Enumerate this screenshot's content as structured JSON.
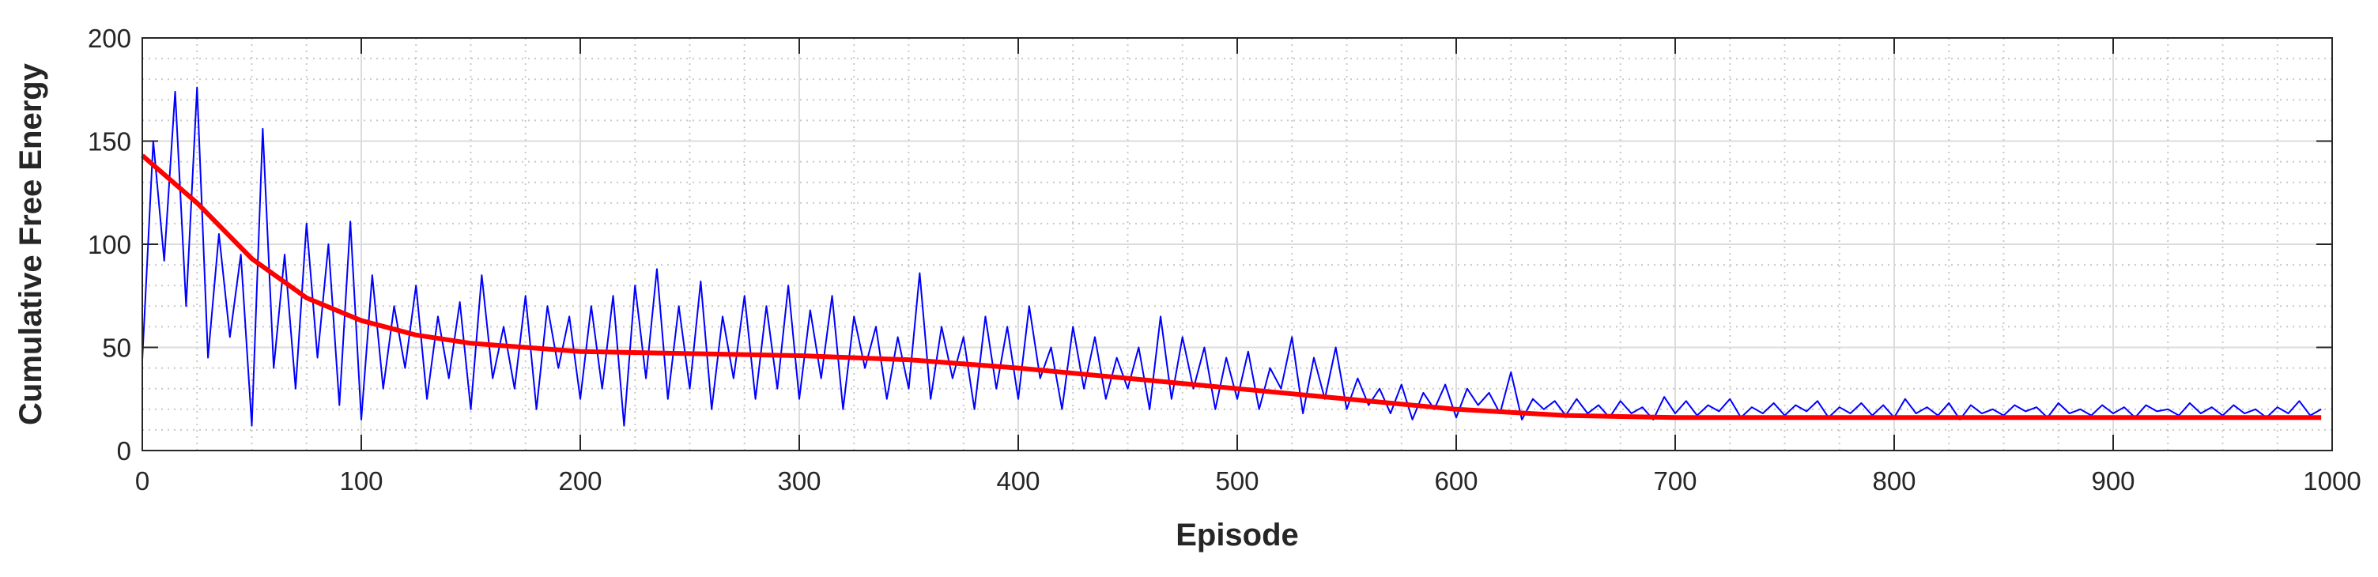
{
  "chart_data": {
    "type": "line",
    "xlabel": "Episode",
    "ylabel": "Cumulative Free Energy",
    "xlim": [
      0,
      1000
    ],
    "ylim": [
      0,
      200
    ],
    "xticks": [
      0,
      100,
      200,
      300,
      400,
      500,
      600,
      700,
      800,
      900,
      1000
    ],
    "yticks": [
      0,
      50,
      100,
      150,
      200
    ],
    "xminorticks": [
      0,
      25,
      50,
      75,
      100,
      125,
      150,
      175,
      200,
      225,
      250,
      275,
      300,
      325,
      350,
      375,
      400,
      425,
      450,
      475,
      500,
      525,
      550,
      575,
      600,
      625,
      650,
      675,
      700,
      725,
      750,
      775,
      800,
      825,
      850,
      875,
      900,
      925,
      950,
      975,
      1000
    ],
    "yminorticks": [
      0,
      10,
      20,
      30,
      40,
      50,
      60,
      70,
      80,
      90,
      100,
      110,
      120,
      130,
      140,
      150,
      160,
      170,
      180,
      190,
      200
    ],
    "grid": true,
    "minor_grid": true,
    "series": [
      {
        "color": "#0000ff",
        "x": [
          0,
          5,
          10,
          15,
          20,
          25,
          30,
          35,
          40,
          45,
          50,
          55,
          60,
          65,
          70,
          75,
          80,
          85,
          90,
          95,
          100,
          105,
          110,
          115,
          120,
          125,
          130,
          135,
          140,
          145,
          150,
          155,
          160,
          165,
          170,
          175,
          180,
          185,
          190,
          195,
          200,
          205,
          210,
          215,
          220,
          225,
          230,
          235,
          240,
          245,
          250,
          255,
          260,
          265,
          270,
          275,
          280,
          285,
          290,
          295,
          300,
          305,
          310,
          315,
          320,
          325,
          330,
          335,
          340,
          345,
          350,
          355,
          360,
          365,
          370,
          375,
          380,
          385,
          390,
          395,
          400,
          405,
          410,
          415,
          420,
          425,
          430,
          435,
          440,
          445,
          450,
          455,
          460,
          465,
          470,
          475,
          480,
          485,
          490,
          495,
          500,
          505,
          510,
          515,
          520,
          525,
          530,
          535,
          540,
          545,
          550,
          555,
          560,
          565,
          570,
          575,
          580,
          585,
          590,
          595,
          600,
          605,
          610,
          615,
          620,
          625,
          630,
          635,
          640,
          645,
          650,
          655,
          660,
          665,
          670,
          675,
          680,
          685,
          690,
          695,
          700,
          705,
          710,
          715,
          720,
          725,
          730,
          735,
          740,
          745,
          750,
          755,
          760,
          765,
          770,
          775,
          780,
          785,
          790,
          795,
          800,
          805,
          810,
          815,
          820,
          825,
          830,
          835,
          840,
          845,
          850,
          855,
          860,
          865,
          870,
          875,
          880,
          885,
          890,
          895,
          900,
          905,
          910,
          915,
          920,
          925,
          930,
          935,
          940,
          945,
          950,
          955,
          960,
          965,
          970,
          975,
          980,
          985,
          990,
          995
        ],
        "values": [
          44,
          150,
          92,
          174,
          70,
          176,
          45,
          105,
          55,
          95,
          12,
          156,
          40,
          95,
          30,
          110,
          45,
          100,
          22,
          111,
          15,
          85,
          30,
          70,
          40,
          80,
          25,
          65,
          35,
          72,
          20,
          85,
          35,
          60,
          30,
          75,
          20,
          70,
          40,
          65,
          25,
          70,
          30,
          75,
          12,
          80,
          35,
          88,
          25,
          70,
          30,
          82,
          20,
          65,
          35,
          75,
          25,
          70,
          30,
          80,
          25,
          68,
          35,
          75,
          20,
          65,
          40,
          60,
          25,
          55,
          30,
          86,
          25,
          60,
          35,
          55,
          20,
          65,
          30,
          60,
          25,
          70,
          35,
          50,
          20,
          60,
          30,
          55,
          25,
          45,
          30,
          50,
          20,
          65,
          25,
          55,
          30,
          50,
          20,
          45,
          25,
          48,
          20,
          40,
          30,
          55,
          18,
          45,
          25,
          50,
          20,
          35,
          22,
          30,
          18,
          32,
          15,
          28,
          20,
          32,
          16,
          30,
          22,
          28,
          18,
          38,
          15,
          25,
          20,
          24,
          17,
          25,
          18,
          22,
          16,
          24,
          18,
          21,
          15,
          26,
          18,
          24,
          17,
          22,
          19,
          25,
          16,
          21,
          18,
          23,
          17,
          22,
          19,
          24,
          16,
          21,
          18,
          23,
          17,
          22,
          16,
          25,
          18,
          21,
          17,
          23,
          15,
          22,
          18,
          20,
          17,
          22,
          19,
          21,
          16,
          23,
          18,
          20,
          17,
          22,
          18,
          21,
          16,
          22,
          19,
          20,
          17,
          23,
          18,
          21,
          17,
          22,
          18,
          20,
          16,
          21,
          18,
          24,
          17,
          20
        ]
      },
      {
        "color": "#ff0000",
        "x": [
          0,
          25,
          50,
          75,
          100,
          125,
          150,
          200,
          250,
          300,
          350,
          400,
          450,
          500,
          550,
          600,
          650,
          700,
          800,
          900,
          995
        ],
        "values": [
          143,
          120,
          93,
          74,
          63,
          56,
          52,
          48,
          47,
          46,
          44,
          40,
          35,
          30,
          25,
          20,
          17,
          16,
          16,
          16,
          16
        ]
      }
    ]
  }
}
